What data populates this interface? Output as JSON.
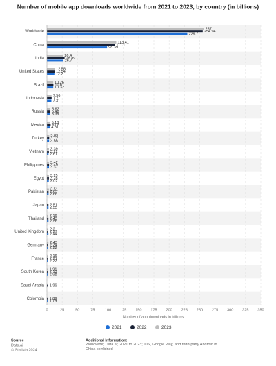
{
  "chart_data": {
    "type": "bar",
    "orientation": "horizontal",
    "title": "Number of mobile app downloads worldwide from 2021 to 2023, by country (in billions)",
    "x_label": "Number of app downloads in billions",
    "categories": [
      "Worldwide",
      "China",
      "India",
      "United States",
      "Brazil",
      "Indonesia",
      "Russia",
      "Mexico",
      "Turkey",
      "Vietnam",
      "Philippines",
      "Egypt",
      "Pakistan",
      "Japan",
      "Thailand",
      "United Kingdom",
      "Germany",
      "France",
      "South Korea",
      "Saudi Arabia",
      "Colombia"
    ],
    "series": [
      {
        "name": "2021",
        "color": "#1f6fd6",
        "values": [
          229.7,
          98.39,
          26.7,
          12.2,
          10.32,
          7.31,
          5.39,
          4.81,
          3.55,
          2.61,
          3.37,
          3.02,
          2.66,
          2.55,
          2.56,
          2.44,
          2.22,
          2.22,
          2.08,
          null,
          1.79
        ]
      },
      {
        "name": "2022",
        "color": "#1a2236",
        "values": [
          254.94,
          111.11,
          28.89,
          12.54,
          10.61,
          7.7,
          5.48,
          6.08,
          3.72,
          3.22,
          3.49,
          3.28,
          2.65,
          2.51,
          2.43,
          2.27,
          2.24,
          2.21,
          2.13,
          1.96,
          1.89
        ]
      },
      {
        "name": "2023",
        "color": "#bdbdbd",
        "values": [
          257,
          113.41,
          26.4,
          12.58,
          10.26,
          7.56,
          5.62,
          5.18,
          3.83,
          3.39,
          3.42,
          3.25,
          3.51,
          null,
          2.16,
          2.3,
          2.43,
          2.16,
          1.91,
          null,
          null
        ]
      }
    ],
    "xlim": [
      0,
      350
    ],
    "xticks": [
      0,
      25,
      50,
      75,
      100,
      125,
      150,
      175,
      200,
      225,
      250,
      275,
      300,
      325,
      350
    ],
    "grid": true,
    "footer": {
      "source_title": "Source",
      "source": "Data.ai",
      "copyright": "© Statista 2024",
      "info_title": "Additional Information:",
      "info": "Worldwide; Data.ai; 2021 to 2023; iOS, Google Play, and third-party Android in China combined"
    }
  }
}
